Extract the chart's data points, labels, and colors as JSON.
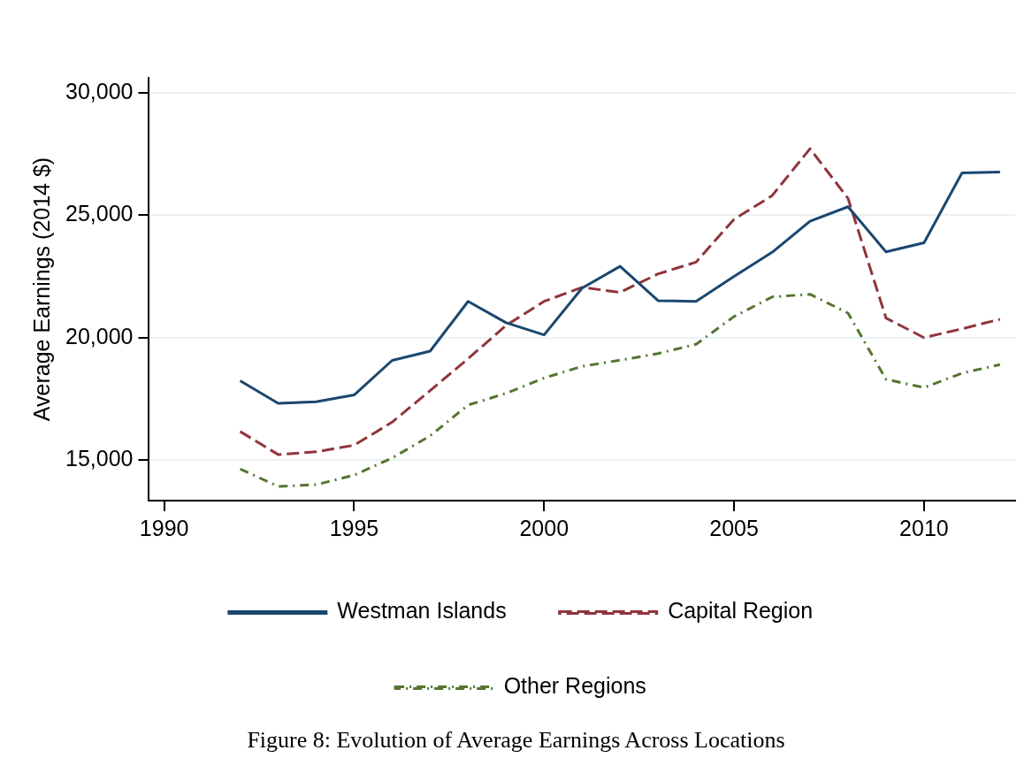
{
  "chart_data": {
    "type": "line",
    "ylabel": "Average Earnings (2014 $)",
    "x": [
      1992,
      1993,
      1994,
      1995,
      1996,
      1997,
      1998,
      1999,
      2000,
      2001,
      2002,
      2003,
      2004,
      2005,
      2006,
      2007,
      2008,
      2009,
      2010,
      2011,
      2012
    ],
    "series": [
      {
        "name": "Westman Islands",
        "color": "#1a476f",
        "line_style": "solid",
        "values": [
          18240,
          17320,
          17380,
          17660,
          19070,
          19450,
          21480,
          20610,
          20110,
          22020,
          22910,
          21510,
          21480,
          22500,
          23480,
          24750,
          25340,
          23500,
          23870,
          26720,
          26760
        ]
      },
      {
        "name": "Capital Region",
        "color": "#90353b",
        "line_style": "dashed",
        "values": [
          16170,
          15230,
          15340,
          15610,
          16550,
          17840,
          19140,
          20500,
          21480,
          22050,
          21850,
          22600,
          23080,
          24830,
          25790,
          27710,
          25680,
          20800,
          20000,
          20360,
          20750
        ]
      },
      {
        "name": "Other Regions",
        "color": "#55752f",
        "line_style": "dashdot",
        "values": [
          14640,
          13930,
          14000,
          14390,
          15090,
          15990,
          17250,
          17730,
          18350,
          18830,
          19080,
          19350,
          19730,
          20860,
          21660,
          21770,
          21000,
          18300,
          17960,
          18550,
          18900
        ]
      }
    ],
    "xlim": [
      1989.6,
      2012.4
    ],
    "xticks": [
      1990,
      1995,
      2000,
      2005,
      2010
    ],
    "ylim": [
      13350,
      30600
    ],
    "yticks": [
      {
        "value": 15000,
        "label": "15,000"
      },
      {
        "value": 20000,
        "label": "20,000"
      },
      {
        "value": 25000,
        "label": "25,000"
      },
      {
        "value": 30000,
        "label": "30,000"
      }
    ],
    "grid": "y",
    "legend": "bottom",
    "marker": "none",
    "annotations": [
      "Figure 8: Evolution of Average Earnings Across Locations"
    ]
  }
}
